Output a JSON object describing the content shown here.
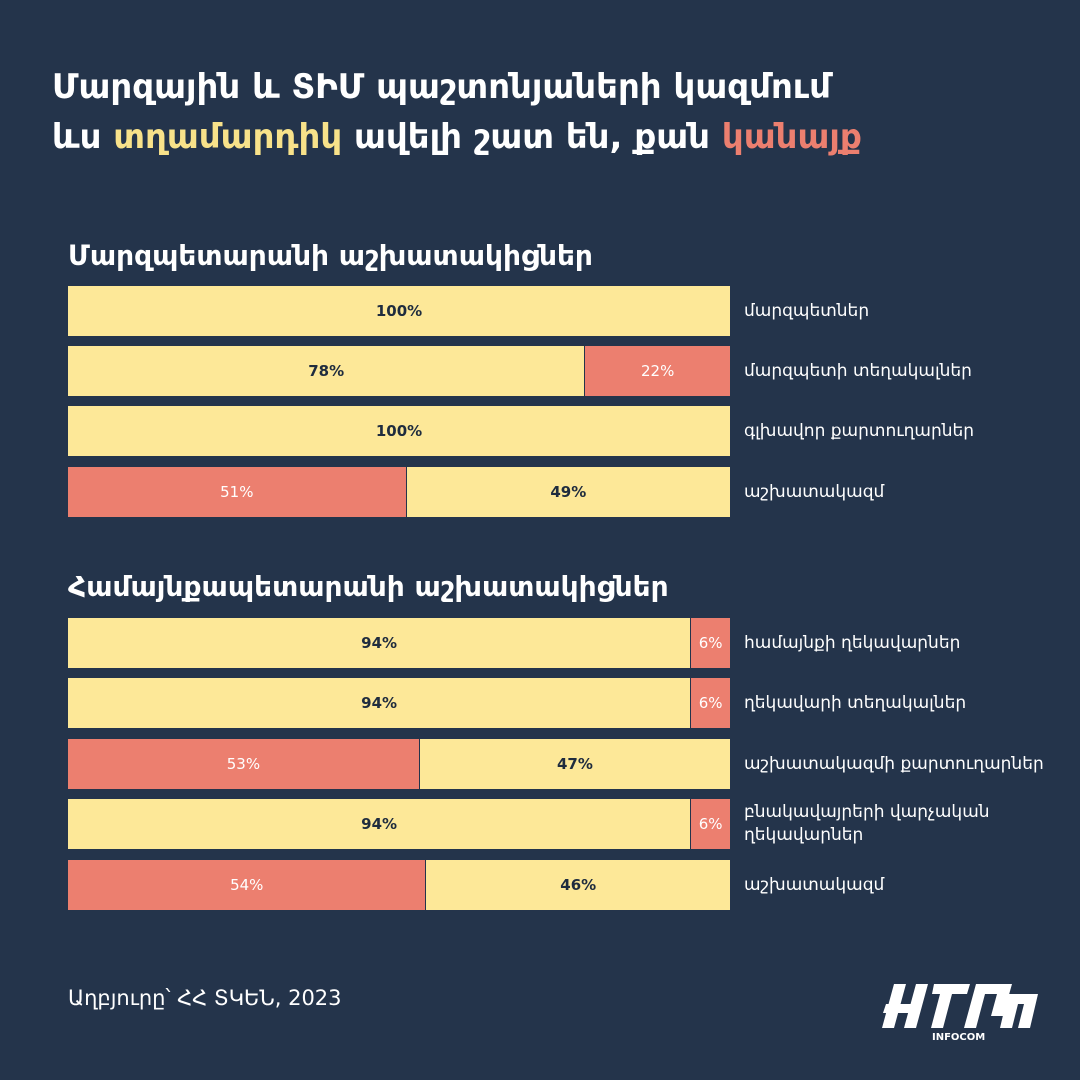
{
  "title": {
    "line1": "Մարզային և ՏԻՄ պաշտոնյաների կազմում",
    "line2_part1": "ևս ",
    "line2_men": "տղամարդիկ",
    "line2_part2": " ավելի շատ են, քան ",
    "line2_women": "կանայք"
  },
  "colors": {
    "background": "#24344b",
    "men": "#fde898",
    "women": "#ec7f6f",
    "men_title": "#f8e28a"
  },
  "chart_data": [
    {
      "type": "bar",
      "stacked": true,
      "orientation": "horizontal",
      "title": "Մարզպետարանի աշխատակիցներ",
      "categories": [
        "մարզպետներ",
        "մարզպետի տեղակալներ",
        "գլխավոր քարտուղարներ",
        "աշխատակազմ"
      ],
      "rows": [
        {
          "label": "մարզպետներ",
          "segments": [
            {
              "series": "men",
              "value": 100,
              "label": "100%"
            }
          ]
        },
        {
          "label": "մարզպետի տեղակալներ",
          "segments": [
            {
              "series": "men",
              "value": 78,
              "label": "78%"
            },
            {
              "series": "women",
              "value": 22,
              "label": "22%"
            }
          ]
        },
        {
          "label": "գլխավոր քարտուղարներ",
          "segments": [
            {
              "series": "men",
              "value": 100,
              "label": "100%"
            }
          ]
        },
        {
          "label": "աշխատակազմ",
          "segments": [
            {
              "series": "women",
              "value": 51,
              "label": "51%"
            },
            {
              "series": "men",
              "value": 49,
              "label": "49%"
            }
          ]
        }
      ]
    },
    {
      "type": "bar",
      "stacked": true,
      "orientation": "horizontal",
      "title": "Համայնքապետարանի աշխատակիցներ",
      "categories": [
        "համայնքի ղեկավարներ",
        "ղեկավարի տեղակալներ",
        "աշխատակազմի քարտուղարներ",
        "բնակավայրերի վարչական ղեկավարներ",
        "աշխատակազմ"
      ],
      "rows": [
        {
          "label": "համայնքի ղեկավարներ",
          "segments": [
            {
              "series": "men",
              "value": 94,
              "label": "94%"
            },
            {
              "series": "women",
              "value": 6,
              "label": "6%"
            }
          ]
        },
        {
          "label": "ղեկավարի տեղակալներ",
          "segments": [
            {
              "series": "men",
              "value": 94,
              "label": "94%"
            },
            {
              "series": "women",
              "value": 6,
              "label": "6%"
            }
          ]
        },
        {
          "label": "աշխատակազմի քարտուղարներ",
          "segments": [
            {
              "series": "women",
              "value": 53,
              "label": "53%"
            },
            {
              "series": "men",
              "value": 47,
              "label": "47%"
            }
          ]
        },
        {
          "label": "բնակավայրերի վարչական ղեկավարներ",
          "segments": [
            {
              "series": "men",
              "value": 94,
              "label": "94%"
            },
            {
              "series": "women",
              "value": 6,
              "label": "6%"
            }
          ]
        },
        {
          "label": "աշխատակազմ",
          "segments": [
            {
              "series": "women",
              "value": 54,
              "label": "54%"
            },
            {
              "series": "men",
              "value": 46,
              "label": "46%"
            }
          ]
        }
      ]
    }
  ],
  "source": "Աղբյուրը՝ ՀՀ ՏԿԵՆ, 2023",
  "logo": {
    "icon": "infocom-logo",
    "text": "INFOCOM"
  }
}
